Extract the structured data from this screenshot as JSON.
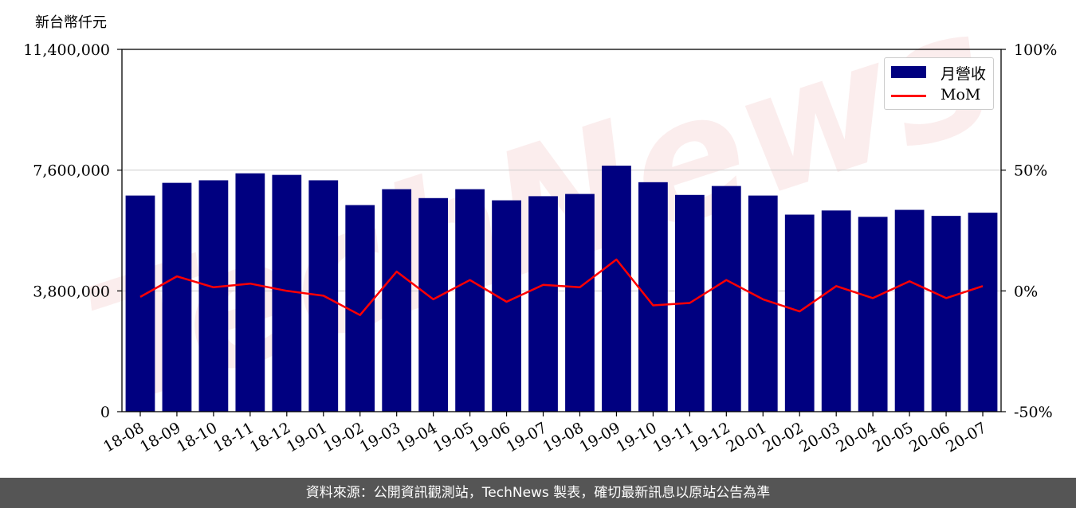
{
  "unit_label": "新台幣仟元",
  "footer_text": "資料來源：公開資訊觀測站，TechNews 製表，確切最新訊息以原站公告為準",
  "watermark": "TechNews",
  "chart_data": {
    "type": "bar",
    "categories": [
      "18-08",
      "18-09",
      "18-10",
      "18-11",
      "18-12",
      "19-01",
      "19-02",
      "19-03",
      "19-04",
      "19-05",
      "19-06",
      "19-07",
      "19-08",
      "19-09",
      "19-10",
      "19-11",
      "19-12",
      "20-01",
      "20-02",
      "20-03",
      "20-04",
      "20-05",
      "20-06",
      "20-07"
    ],
    "series": [
      {
        "name": "月營收",
        "type": "bar",
        "axis": "left",
        "color": "#000080",
        "values": [
          6800000,
          7200000,
          7280000,
          7500000,
          7450000,
          7280000,
          6500000,
          7000000,
          6720000,
          7000000,
          6650000,
          6780000,
          6850000,
          7740000,
          7220000,
          6820000,
          7100000,
          6800000,
          6200000,
          6330000,
          6130000,
          6350000,
          6160000,
          6260000
        ]
      },
      {
        "name": "MoM",
        "type": "line",
        "axis": "right",
        "color": "#ff0000",
        "values": [
          -2.5,
          6.0,
          1.5,
          3.0,
          0.0,
          -2.0,
          -10.0,
          8.0,
          -3.5,
          4.5,
          -4.5,
          2.5,
          1.5,
          13.0,
          -6.0,
          -5.0,
          4.5,
          -3.5,
          -8.5,
          2.0,
          -3.0,
          4.0,
          -3.0,
          2.0
        ]
      }
    ],
    "yleft": {
      "ticks": [
        "0",
        "3,800,000",
        "7,600,000",
        "11,400,000"
      ],
      "ylim": [
        0,
        11400000
      ]
    },
    "yright": {
      "ticks": [
        "-50%",
        "0%",
        "50%",
        "100%"
      ],
      "ylim": [
        -50,
        100
      ]
    },
    "grid": "horizontal",
    "legend_position": "top-right"
  }
}
